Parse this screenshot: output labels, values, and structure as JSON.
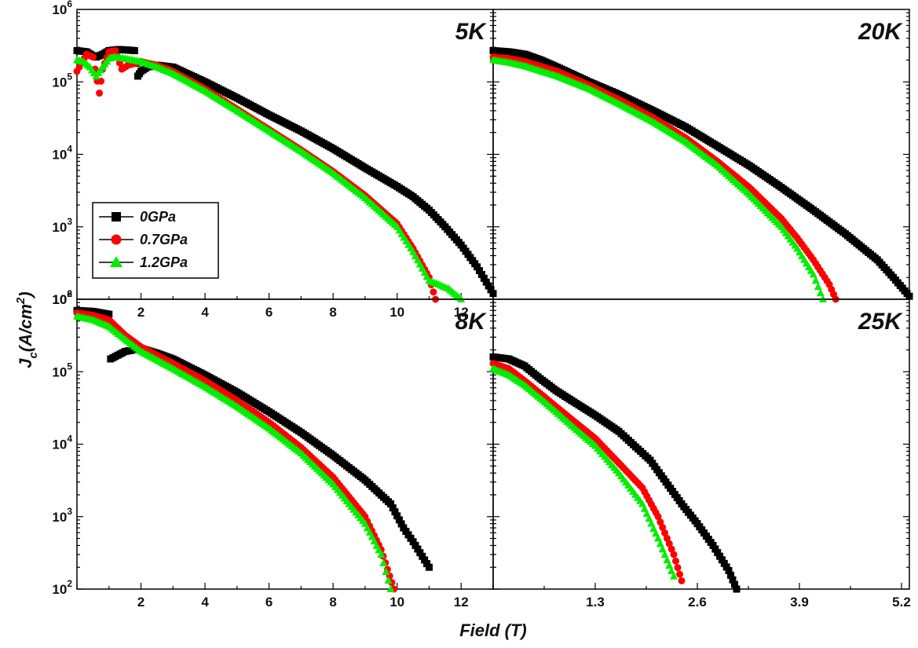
{
  "figure": {
    "xlabel": "Field (T)",
    "ylabel_main": "J",
    "ylabel_sub": "c",
    "ylabel_rest": "(A/cm",
    "ylabel_sup": "2",
    "ylabel_close": ")"
  },
  "legend": [
    {
      "name": "0GPa",
      "color": "#000000",
      "marker": "square"
    },
    {
      "name": "0.7GPa",
      "color": "#ff0000",
      "marker": "circle"
    },
    {
      "name": "1.2GPa",
      "color": "#00ee00",
      "marker": "triangle"
    }
  ],
  "chart_data": [
    {
      "type": "scatter",
      "panel_label": "5K",
      "xlim": [
        0,
        13
      ],
      "ylim": [
        100,
        1000000
      ],
      "yscale": "log",
      "xticks": [
        2,
        4,
        6,
        8,
        10,
        12
      ],
      "xtick_labels": [
        "2",
        "4",
        "6",
        "8",
        "10",
        "12"
      ],
      "ytick_labels": [
        {
          "base": "10",
          "exp": "2"
        },
        {
          "base": "10",
          "exp": "3"
        },
        {
          "base": "10",
          "exp": "4"
        },
        {
          "base": "10",
          "exp": "5"
        },
        {
          "base": "10",
          "exp": "6"
        }
      ],
      "series": [
        {
          "name": "0GPa",
          "x": [
            0,
            0.3,
            0.5,
            0.6,
            0.8,
            1.0,
            1.3,
            1.6,
            1.8,
            1.9,
            2.0,
            2.2,
            2.5,
            3,
            4,
            5,
            6,
            7,
            8,
            9,
            10,
            10.5,
            11,
            11.5,
            12,
            12.5,
            13
          ],
          "y": [
            270000,
            260000,
            230000,
            220000,
            240000,
            270000,
            280000,
            275000,
            270000,
            120000,
            140000,
            160000,
            170000,
            160000,
            100000,
            60000,
            35000,
            21000,
            12000,
            6500,
            3600,
            2600,
            1700,
            1000,
            560,
            280,
            120
          ]
        },
        {
          "name": "0.7GPa",
          "x": [
            0,
            0.3,
            0.5,
            0.7,
            0.8,
            1.0,
            1.2,
            1.4,
            1.6,
            2.0,
            2.5,
            3,
            4,
            5,
            6,
            7,
            8,
            9,
            10,
            10.5,
            11,
            11.2
          ],
          "y": [
            140000,
            240000,
            220000,
            70000,
            150000,
            260000,
            270000,
            150000,
            170000,
            190000,
            170000,
            140000,
            80000,
            42000,
            22000,
            11500,
            5800,
            2700,
            1100,
            500,
            200,
            100
          ]
        },
        {
          "name": "1.2GPa",
          "x": [
            0,
            0.2,
            0.4,
            0.6,
            0.8,
            1.0,
            1.2,
            1.5,
            2.0,
            2.5,
            3,
            4,
            5,
            6,
            7,
            8,
            9,
            10,
            10.5,
            11,
            11.3,
            11.6,
            12
          ],
          "y": [
            200000,
            190000,
            160000,
            120000,
            160000,
            210000,
            220000,
            210000,
            190000,
            160000,
            130000,
            75000,
            40000,
            21000,
            11000,
            5500,
            2500,
            1000,
            450,
            180,
            160,
            140,
            100
          ]
        }
      ]
    },
    {
      "type": "scatter",
      "panel_label": "20K",
      "xlim": [
        0,
        13
      ],
      "ylim": [
        100,
        1000000
      ],
      "yscale": "log",
      "xticks": [],
      "xtick_labels": [],
      "ytick_labels": [],
      "series": [
        {
          "name": "0GPa",
          "x": [
            0,
            0.5,
            1,
            1.5,
            2,
            3,
            4,
            5,
            6,
            7,
            8,
            9,
            10,
            11,
            12,
            12.5,
            13
          ],
          "y": [
            270000,
            260000,
            240000,
            200000,
            160000,
            100000,
            65000,
            40000,
            24000,
            13000,
            7000,
            3500,
            1700,
            800,
            350,
            200,
            110
          ]
        },
        {
          "name": "0.7GPa",
          "x": [
            0,
            0.5,
            1,
            2,
            3,
            4,
            5,
            6,
            7,
            8,
            9,
            9.5,
            10,
            10.5,
            10.7
          ],
          "y": [
            220000,
            210000,
            190000,
            140000,
            90000,
            55000,
            32000,
            17000,
            8000,
            3500,
            1300,
            700,
            350,
            160,
            100
          ]
        },
        {
          "name": "1.2GPa",
          "x": [
            0,
            0.5,
            1,
            2,
            3,
            4,
            5,
            6,
            7,
            8,
            9,
            9.5,
            10,
            10.3
          ],
          "y": [
            200000,
            185000,
            165000,
            120000,
            80000,
            48000,
            28000,
            15000,
            7000,
            2800,
            1000,
            500,
            220,
            100
          ]
        }
      ]
    },
    {
      "type": "scatter",
      "panel_label": "8K",
      "xlim": [
        0,
        13
      ],
      "ylim": [
        100,
        1000000
      ],
      "yscale": "log",
      "xticks": [
        2,
        4,
        6,
        8,
        10,
        12
      ],
      "xtick_labels": [
        "2",
        "4",
        "6",
        "8",
        "10",
        "12"
      ],
      "ytick_labels": [
        {
          "base": "10",
          "exp": "2"
        },
        {
          "base": "10",
          "exp": "3"
        },
        {
          "base": "10",
          "exp": "4"
        },
        {
          "base": "10",
          "exp": "5"
        },
        {
          "base": "10",
          "exp": "6"
        }
      ],
      "series": [
        {
          "name": "0GPa",
          "x": [
            0,
            0.5,
            1.0,
            1.05,
            1.5,
            2.0,
            2.5,
            3,
            4,
            5,
            6,
            7,
            8,
            9,
            9.8,
            10.2,
            10.5,
            11
          ],
          "y": [
            700000,
            680000,
            620000,
            150000,
            190000,
            210000,
            180000,
            150000,
            90000,
            52000,
            28000,
            14500,
            7000,
            3200,
            1500,
            700,
            450,
            200
          ]
        },
        {
          "name": "0.7GPa",
          "x": [
            0,
            0.5,
            1,
            1.5,
            2,
            3,
            4,
            5,
            6,
            7,
            8,
            9,
            9.5,
            9.9
          ],
          "y": [
            650000,
            600000,
            520000,
            320000,
            220000,
            130000,
            75000,
            40000,
            20000,
            9000,
            3500,
            1000,
            350,
            100
          ]
        },
        {
          "name": "1.2GPa",
          "x": [
            0,
            0.5,
            1,
            1.5,
            2,
            3,
            4,
            5,
            6,
            7,
            8,
            9,
            9.5,
            9.8
          ],
          "y": [
            580000,
            520000,
            420000,
            280000,
            190000,
            110000,
            62000,
            33000,
            16500,
            7500,
            2800,
            800,
            300,
            100
          ]
        }
      ]
    },
    {
      "type": "scatter",
      "panel_label": "25K",
      "xlim": [
        0,
        5.3
      ],
      "ylim": [
        100,
        1000000
      ],
      "yscale": "log",
      "xticks": [
        1.3,
        2.6,
        3.9,
        5.2
      ],
      "xtick_labels": [
        "1.3",
        "2.6",
        "3.9",
        "5.2"
      ],
      "ytick_labels": [],
      "series": [
        {
          "name": "0GPa",
          "x": [
            0,
            0.2,
            0.4,
            0.6,
            0.8,
            1.0,
            1.3,
            1.6,
            2.0,
            2.2,
            2.4,
            2.6,
            2.8,
            3.0,
            3.1
          ],
          "y": [
            160000,
            150000,
            120000,
            80000,
            55000,
            40000,
            25000,
            15000,
            6000,
            3000,
            1500,
            800,
            400,
            180,
            100
          ]
        },
        {
          "name": "0.7GPa",
          "x": [
            0,
            0.2,
            0.4,
            0.6,
            0.8,
            1.0,
            1.3,
            1.6,
            1.9,
            2.1,
            2.3,
            2.4
          ],
          "y": [
            130000,
            110000,
            75000,
            50000,
            33000,
            22000,
            12000,
            5500,
            2500,
            1000,
            300,
            130
          ]
        },
        {
          "name": "1.2GPa",
          "x": [
            0,
            0.2,
            0.4,
            0.6,
            0.8,
            1.0,
            1.3,
            1.6,
            1.9,
            2.1,
            2.3
          ],
          "y": [
            110000,
            90000,
            65000,
            43000,
            28000,
            18000,
            9500,
            4000,
            1500,
            500,
            150
          ]
        }
      ]
    }
  ]
}
